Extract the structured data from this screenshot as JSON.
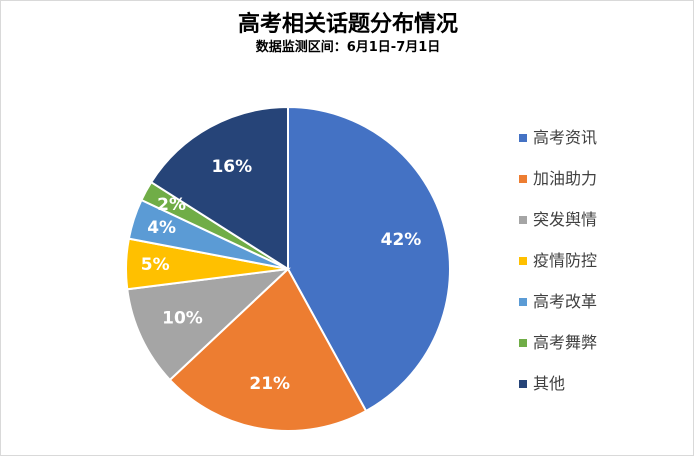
{
  "chart_data": {
    "type": "pie",
    "title": "高考相关话题分布情况",
    "subtitle": "数据监测区间：6月1日-7月1日",
    "categories": [
      "高考资讯",
      "加油助力",
      "突发舆情",
      "疫情防控",
      "高考改革",
      "高考舞弊",
      "其他"
    ],
    "values": [
      42,
      21,
      10,
      5,
      4,
      2,
      16
    ],
    "labels": [
      "42%",
      "21%",
      "10%",
      "5%",
      "4%",
      "2%",
      "16%"
    ],
    "colors": [
      "#4472C4",
      "#ED7D31",
      "#A5A5A5",
      "#FFC000",
      "#5B9BD5",
      "#70AD47",
      "#264478"
    ],
    "legend": "right"
  }
}
